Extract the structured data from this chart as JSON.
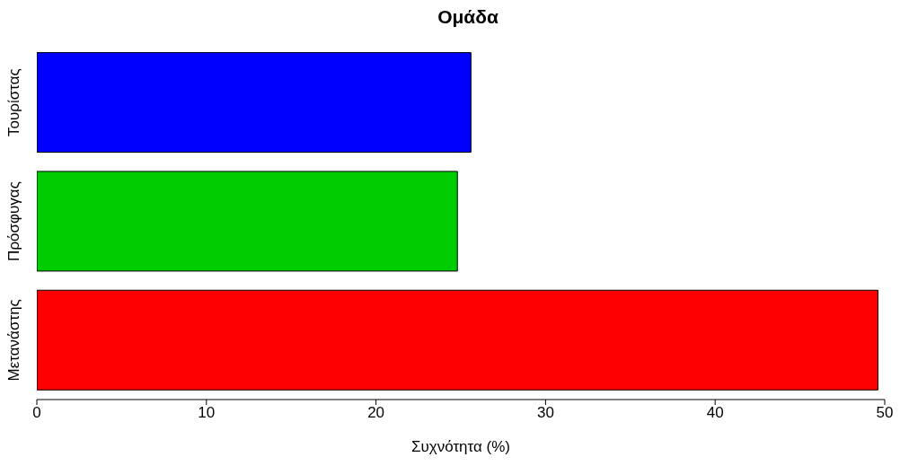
{
  "chart_data": {
    "type": "bar",
    "orientation": "horizontal",
    "title": "Ομάδα",
    "xlabel": "Συχνότητα (%)",
    "categories": [
      "Τουρίστας",
      "Πρόσφυγας",
      "Μετανάστης"
    ],
    "values": [
      25.6,
      24.8,
      49.6
    ],
    "colors": [
      "#0000ff",
      "#00cd00",
      "#ff0000"
    ],
    "xlim": [
      0,
      50
    ],
    "xticks": [
      0,
      10,
      20,
      30,
      40,
      50
    ],
    "grid": false
  }
}
